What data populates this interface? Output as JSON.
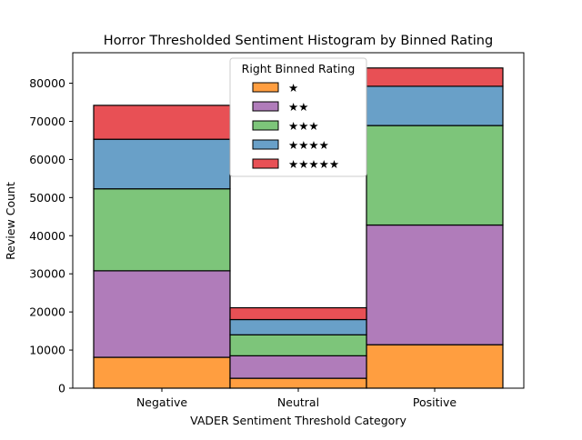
{
  "chart_data": {
    "type": "bar",
    "stacked": true,
    "title": "Horror Thresholded Sentiment Histogram by Binned Rating",
    "xlabel": "VADER Sentiment Threshold Category",
    "ylabel": "Review Count",
    "categories": [
      "Negative",
      "Neutral",
      "Positive"
    ],
    "ylim": [
      0,
      88000
    ],
    "yticks": [
      0,
      10000,
      20000,
      30000,
      40000,
      50000,
      60000,
      70000,
      80000
    ],
    "legend": {
      "title": "Right Binned Rating",
      "placement": "top-center"
    },
    "grid": false,
    "series": [
      {
        "name": "★",
        "color": "#ff9e40",
        "values": [
          8100,
          2600,
          11400
        ]
      },
      {
        "name": "★★",
        "color": "#b07cba",
        "values": [
          22700,
          5900,
          31400
        ]
      },
      {
        "name": "★★★",
        "color": "#7dc57a",
        "values": [
          21500,
          5500,
          26100
        ]
      },
      {
        "name": "★★★★",
        "color": "#69a0c8",
        "values": [
          13000,
          4000,
          10300
        ]
      },
      {
        "name": "★★★★★",
        "color": "#e85055",
        "values": [
          8900,
          3100,
          4800
        ]
      }
    ]
  }
}
